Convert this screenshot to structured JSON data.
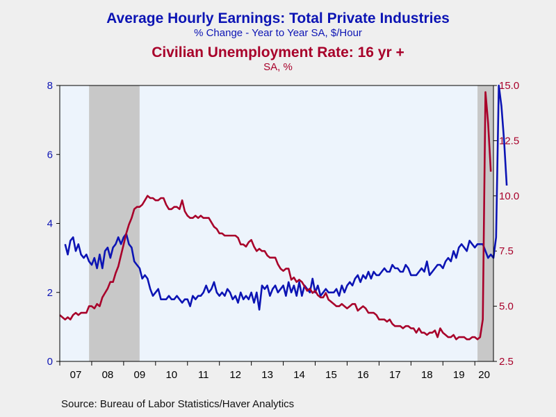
{
  "chart_data": {
    "type": "line",
    "title": "Average Hourly Earnings: Total Private Industries",
    "subtitle": "% Change - Year to Year    SA, $/Hour",
    "title2": "Civilian Unemployment Rate: 16 yr +",
    "subtitle2": "SA, %",
    "source": "Source:  Bureau of Labor Statistics/Haver Analytics",
    "x_ticks": [
      "07",
      "08",
      "09",
      "10",
      "11",
      "12",
      "13",
      "14",
      "15",
      "16",
      "17",
      "18",
      "19",
      "20"
    ],
    "y_left": {
      "ylim": [
        0,
        8
      ],
      "ticks": [
        "0",
        "2",
        "4",
        "6",
        "8"
      ]
    },
    "y_right": {
      "ylim": [
        2.5,
        15.0
      ],
      "ticks": [
        "2.5",
        "5.0",
        "7.5",
        "10.0",
        "12.5",
        "15.0"
      ]
    },
    "recessions": [
      [
        2007.917,
        2009.5
      ],
      [
        2020.083,
        2020.583
      ]
    ],
    "colors": {
      "earnings": "#0c14b4",
      "unemployment": "#a8002a",
      "recession": "#c8c8c8",
      "plot_bg": "#edf4fc"
    },
    "series": [
      {
        "name": "Average Hourly Earnings: Total Private Industries",
        "axis": "left",
        "x_start": 2007.167,
        "x_step": 0.08333,
        "values": [
          3.4,
          3.1,
          3.5,
          3.6,
          3.2,
          3.4,
          3.1,
          3.0,
          3.1,
          2.9,
          2.8,
          3.0,
          2.7,
          3.1,
          2.7,
          3.2,
          3.3,
          3.0,
          3.3,
          3.4,
          3.6,
          3.4,
          3.6,
          3.7,
          3.4,
          3.3,
          2.9,
          2.8,
          2.7,
          2.4,
          2.5,
          2.4,
          2.1,
          1.9,
          2.0,
          2.1,
          1.8,
          1.8,
          1.8,
          1.9,
          1.8,
          1.8,
          1.9,
          1.8,
          1.7,
          1.8,
          1.8,
          1.6,
          1.9,
          1.8,
          1.9,
          1.9,
          2.0,
          2.2,
          2.0,
          2.1,
          2.3,
          2.0,
          1.9,
          2.0,
          1.9,
          2.1,
          2.0,
          1.8,
          1.9,
          1.7,
          2.0,
          1.8,
          1.9,
          1.8,
          2.0,
          1.7,
          2.0,
          1.5,
          2.2,
          2.1,
          2.2,
          1.9,
          2.1,
          2.2,
          2.0,
          2.1,
          2.2,
          1.9,
          2.3,
          2.0,
          2.2,
          1.9,
          2.3,
          1.9,
          2.2,
          2.1,
          2.0,
          2.4,
          2.0,
          2.2,
          1.9,
          2.0,
          2.1,
          2.0,
          2.0,
          2.0,
          2.1,
          1.9,
          2.2,
          2.0,
          2.2,
          2.3,
          2.2,
          2.4,
          2.5,
          2.3,
          2.5,
          2.4,
          2.6,
          2.4,
          2.6,
          2.5,
          2.5,
          2.6,
          2.7,
          2.6,
          2.6,
          2.8,
          2.7,
          2.7,
          2.6,
          2.6,
          2.8,
          2.7,
          2.5,
          2.5,
          2.5,
          2.6,
          2.7,
          2.6,
          2.9,
          2.5,
          2.6,
          2.7,
          2.8,
          2.8,
          2.7,
          2.9,
          3.0,
          2.9,
          3.2,
          3.0,
          3.3,
          3.4,
          3.3,
          3.2,
          3.5,
          3.4,
          3.3,
          3.4,
          3.4,
          3.4,
          3.2,
          3.0,
          3.1,
          3.0,
          3.6,
          8.0,
          7.4,
          6.4,
          5.1
        ]
      },
      {
        "name": "Civilian Unemployment Rate: 16 yr +",
        "axis": "right",
        "x_start": 2007.0,
        "x_step": 0.08333,
        "values": [
          4.6,
          4.5,
          4.4,
          4.5,
          4.4,
          4.6,
          4.7,
          4.6,
          4.7,
          4.7,
          4.7,
          5.0,
          5.0,
          4.9,
          5.1,
          5.0,
          5.4,
          5.6,
          5.8,
          6.1,
          6.1,
          6.5,
          6.8,
          7.3,
          7.8,
          8.3,
          8.7,
          9.0,
          9.4,
          9.5,
          9.5,
          9.6,
          9.8,
          10.0,
          9.9,
          9.9,
          9.8,
          9.8,
          9.9,
          9.9,
          9.6,
          9.4,
          9.4,
          9.5,
          9.5,
          9.4,
          9.8,
          9.3,
          9.1,
          9.0,
          9.0,
          9.1,
          9.0,
          9.1,
          9.0,
          9.0,
          9.0,
          8.8,
          8.6,
          8.5,
          8.3,
          8.3,
          8.2,
          8.2,
          8.2,
          8.2,
          8.2,
          8.1,
          7.8,
          7.8,
          7.7,
          7.9,
          8.0,
          7.7,
          7.5,
          7.6,
          7.5,
          7.5,
          7.3,
          7.2,
          7.2,
          7.2,
          6.9,
          6.7,
          6.6,
          6.7,
          6.7,
          6.2,
          6.3,
          6.1,
          6.2,
          6.1,
          5.9,
          5.7,
          5.8,
          5.6,
          5.7,
          5.5,
          5.4,
          5.4,
          5.6,
          5.3,
          5.2,
          5.1,
          5.0,
          5.0,
          5.1,
          5.0,
          4.9,
          5.0,
          5.1,
          5.1,
          4.8,
          4.9,
          5.0,
          4.9,
          4.7,
          4.7,
          4.7,
          4.6,
          4.4,
          4.4,
          4.4,
          4.3,
          4.4,
          4.2,
          4.1,
          4.1,
          4.1,
          4.0,
          4.1,
          4.1,
          4.0,
          4.0,
          3.8,
          4.0,
          3.8,
          3.8,
          3.7,
          3.8,
          3.8,
          3.9,
          3.6,
          4.0,
          3.8,
          3.7,
          3.6,
          3.6,
          3.7,
          3.5,
          3.6,
          3.6,
          3.6,
          3.5,
          3.5,
          3.6,
          3.6,
          3.5,
          3.6,
          4.4,
          14.7,
          13.3,
          11.1
        ]
      }
    ]
  }
}
